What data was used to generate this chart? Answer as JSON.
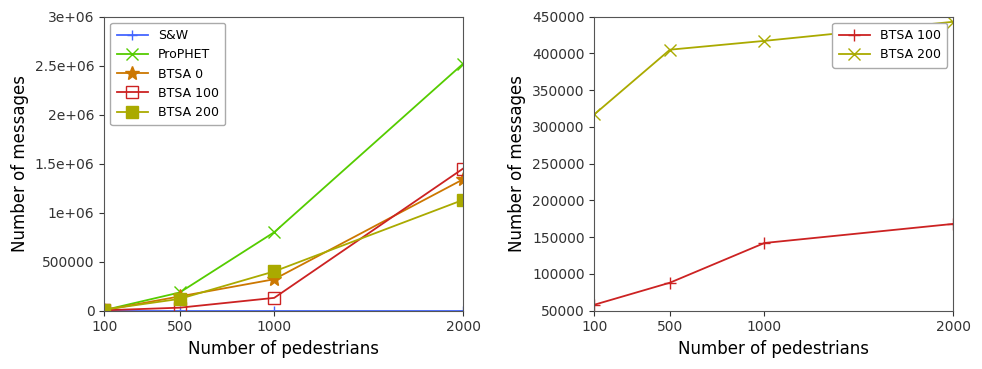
{
  "x": [
    100,
    500,
    1000,
    2000
  ],
  "left": {
    "SW": {
      "values": [
        0,
        0,
        0,
        0
      ],
      "color": "#4466ff",
      "marker": "+",
      "label": "S&W",
      "linestyle": "-",
      "markersize": 7,
      "markerfacecolor": null
    },
    "ProPHET": {
      "values": [
        5000,
        185000,
        800000,
        2520000
      ],
      "color": "#55cc00",
      "marker": "x",
      "label": "ProPHET",
      "linestyle": "-",
      "markersize": 8,
      "markerfacecolor": null
    },
    "BTSA0": {
      "values": [
        5000,
        145000,
        320000,
        1340000
      ],
      "color": "#cc7700",
      "marker": "*",
      "label": "BTSA 0",
      "linestyle": "-",
      "markersize": 10,
      "markerfacecolor": null
    },
    "BTSA100": {
      "values": [
        3000,
        30000,
        130000,
        1450000
      ],
      "color": "#cc2222",
      "marker": "s",
      "label": "BTSA 100",
      "linestyle": "-",
      "markersize": 8,
      "markerfacecolor": "none"
    },
    "BTSA200": {
      "values": [
        10000,
        120000,
        400000,
        1130000
      ],
      "color": "#aaaa00",
      "marker": "s",
      "label": "BTSA 200",
      "linestyle": "-",
      "markersize": 8,
      "markerfacecolor": null
    }
  },
  "right": {
    "BTSA100": {
      "values": [
        58000,
        88000,
        142000,
        168000
      ],
      "color": "#cc2222",
      "marker": "+",
      "label": "BTSA 100",
      "linestyle": "-",
      "markersize": 8,
      "markerfacecolor": null
    },
    "BTSA200": {
      "values": [
        317000,
        405000,
        417000,
        443000
      ],
      "color": "#aaaa00",
      "marker": "x",
      "label": "BTSA 200",
      "linestyle": "-",
      "markersize": 8,
      "markerfacecolor": null
    }
  },
  "left_ylim": [
    0,
    3000000
  ],
  "left_yticks": [
    0,
    500000,
    1000000,
    1500000,
    2000000,
    2500000,
    3000000
  ],
  "right_ylim": [
    50000,
    450000
  ],
  "right_yticks": [
    50000,
    100000,
    150000,
    200000,
    250000,
    300000,
    350000,
    400000,
    450000
  ],
  "xlabel": "Number of pedestrians",
  "ylabel": "Number of messages",
  "xticks": [
    100,
    500,
    1000,
    2000
  ],
  "background_color": "#ffffff",
  "font_size": 12,
  "tick_fontsize": 10,
  "legend_fontsize": 9,
  "linewidth": 1.3
}
